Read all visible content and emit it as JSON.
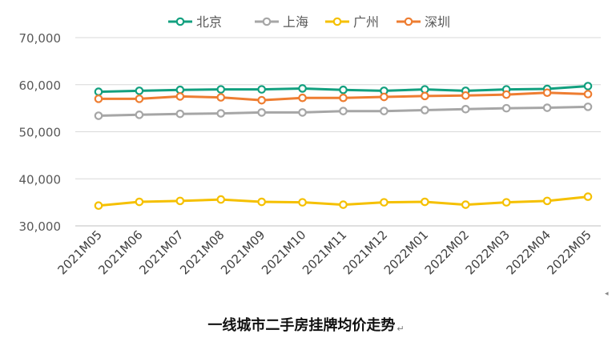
{
  "caption": {
    "text": "一线城市二手房挂牌均价走势",
    "mark": "↵"
  },
  "corner_mark": "◂",
  "chart_data": {
    "type": "line",
    "title": "",
    "xlabel": "",
    "ylabel": "",
    "categories": [
      "2021M05",
      "2021M06",
      "2021M07",
      "2021M08",
      "2021M09",
      "2021M10",
      "2021M11",
      "2021M12",
      "2022M01",
      "2022M02",
      "2022M03",
      "2022M04",
      "2022M05"
    ],
    "ylim": [
      30000,
      70000
    ],
    "yticks": [
      30000,
      40000,
      50000,
      60000,
      70000
    ],
    "ytick_labels": [
      "30,000",
      "40,000",
      "50,000",
      "60,000",
      "70,000"
    ],
    "grid": true,
    "legend_position": "top-center",
    "series": [
      {
        "name": "北京",
        "color": "#12a07f",
        "values": [
          58500,
          58700,
          58900,
          59000,
          59000,
          59200,
          58900,
          58700,
          59000,
          58700,
          59000,
          59100,
          59700
        ]
      },
      {
        "name": "上海",
        "color": "#a6a6a6",
        "values": [
          53400,
          53600,
          53800,
          53900,
          54100,
          54100,
          54400,
          54400,
          54600,
          54800,
          55000,
          55100,
          55300
        ]
      },
      {
        "name": "广州",
        "color": "#f5c000",
        "values": [
          34300,
          35100,
          35300,
          35600,
          35100,
          35000,
          34500,
          35000,
          35100,
          34500,
          35000,
          35300,
          36200
        ]
      },
      {
        "name": "深圳",
        "color": "#ee7d31",
        "values": [
          57000,
          57000,
          57500,
          57300,
          56700,
          57200,
          57200,
          57400,
          57600,
          57700,
          57900,
          58300,
          58000
        ]
      }
    ]
  }
}
